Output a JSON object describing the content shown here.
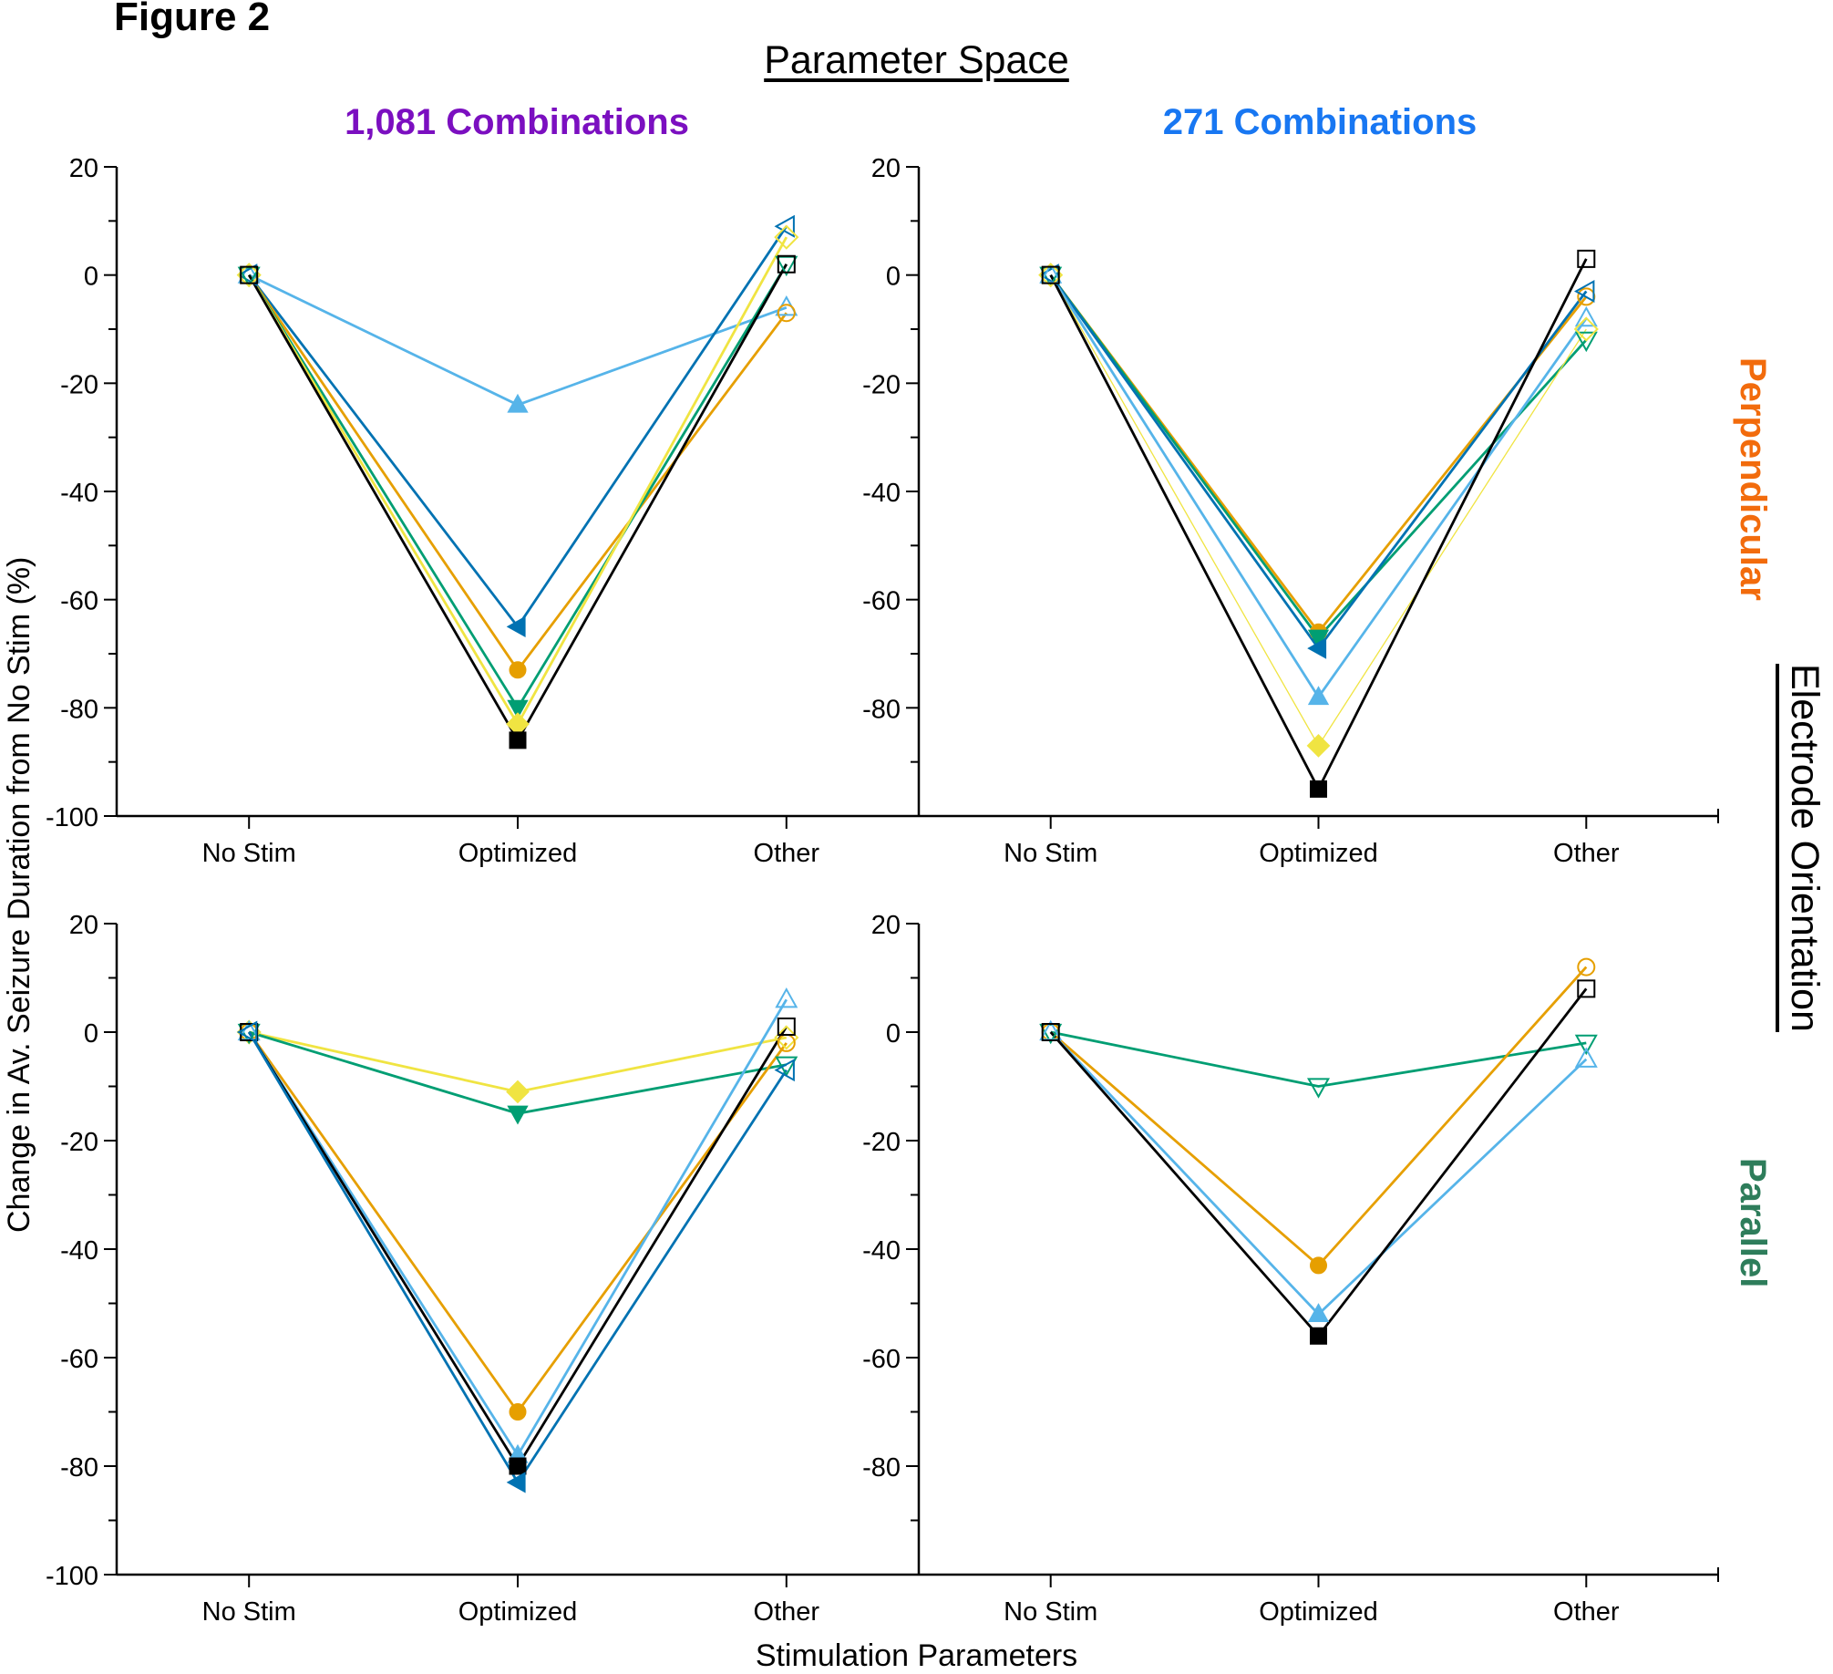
{
  "figure_label": "Figure 2",
  "top_title": "Parameter Space",
  "column_titles": [
    {
      "text": "1,081 Combinations",
      "color": "#7B0FC0"
    },
    {
      "text": "271 Combinations",
      "color": "#1877F2"
    }
  ],
  "row_titles": [
    {
      "text": "Perpendicular",
      "color": "#F26B0C"
    },
    {
      "text": "Parallel",
      "color": "#2E7D5B"
    }
  ],
  "right_title": "Electrode Orientation",
  "ylabel": "Change in Av. Seizure Duration from No Stim (%)",
  "xlabel": "Stimulation Parameters",
  "series_styles": {
    "black": {
      "color": "#000000",
      "marker": "square"
    },
    "orange": {
      "color": "#E69F00",
      "marker": "circle"
    },
    "lightblue": {
      "color": "#56B4E9",
      "marker": "triangle-up"
    },
    "green": {
      "color": "#009E73",
      "marker": "triangle-down"
    },
    "yellow": {
      "color": "#F0E442",
      "marker": "diamond"
    },
    "darkblue": {
      "color": "#0072B2",
      "marker": "triangle-left"
    }
  },
  "chart_data": [
    {
      "type": "line",
      "panel": "top-left",
      "title": "1,081 Combinations",
      "row": "Perpendicular",
      "categories": [
        "No Stim",
        "Optimized",
        "Other"
      ],
      "ylim": [
        -100,
        20
      ],
      "yticks": [
        20,
        0,
        -20,
        -40,
        -60,
        -80,
        -100
      ],
      "ytick_labels": [
        "20",
        "0",
        "-20",
        "-40",
        "-60",
        "-80",
        "-100"
      ],
      "grid": false,
      "series": [
        {
          "name": "lightblue",
          "values": [
            0,
            -24,
            -6
          ]
        },
        {
          "name": "darkblue",
          "values": [
            0,
            -65,
            9
          ]
        },
        {
          "name": "orange",
          "values": [
            0,
            -73,
            -7
          ]
        },
        {
          "name": "green",
          "values": [
            0,
            -80,
            2
          ]
        },
        {
          "name": "yellow",
          "values": [
            0,
            -83,
            7
          ]
        },
        {
          "name": "black",
          "values": [
            0,
            -86,
            2
          ]
        }
      ]
    },
    {
      "type": "line",
      "panel": "top-right",
      "title": "271 Combinations",
      "row": "Perpendicular",
      "categories": [
        "No Stim",
        "Optimized",
        "Other"
      ],
      "ylim": [
        -100,
        20
      ],
      "yticks": [
        20,
        0,
        -20,
        -40,
        -60,
        -80
      ],
      "ytick_labels": [
        "20",
        "0",
        "-20",
        "-40",
        "-60",
        "-80"
      ],
      "grid": false,
      "series": [
        {
          "name": "orange",
          "values": [
            0,
            -66,
            -4
          ]
        },
        {
          "name": "green",
          "values": [
            0,
            -67,
            -12
          ]
        },
        {
          "name": "darkblue",
          "values": [
            0,
            -69,
            -3
          ]
        },
        {
          "name": "lightblue",
          "values": [
            0,
            -78,
            -8
          ]
        },
        {
          "name": "yellow",
          "values": [
            0,
            -87,
            -10
          ]
        },
        {
          "name": "black",
          "values": [
            0,
            -95,
            3
          ]
        }
      ]
    },
    {
      "type": "line",
      "panel": "bottom-left",
      "title": "1,081 Combinations",
      "row": "Parallel",
      "categories": [
        "No Stim",
        "Optimized",
        "Other"
      ],
      "ylim": [
        -100,
        20
      ],
      "yticks": [
        20,
        0,
        -20,
        -40,
        -60,
        -80,
        -100
      ],
      "ytick_labels": [
        "20",
        "0",
        "-20",
        "-40",
        "-60",
        "-80",
        "-100"
      ],
      "grid": false,
      "series": [
        {
          "name": "yellow",
          "values": [
            0,
            -11,
            -1
          ]
        },
        {
          "name": "green",
          "values": [
            0,
            -15,
            -6
          ]
        },
        {
          "name": "orange",
          "values": [
            0,
            -70,
            -2
          ]
        },
        {
          "name": "lightblue",
          "values": [
            0,
            -78,
            6
          ]
        },
        {
          "name": "black",
          "values": [
            0,
            -80,
            1
          ]
        },
        {
          "name": "darkblue",
          "values": [
            0,
            -83,
            -7
          ]
        }
      ]
    },
    {
      "type": "line",
      "panel": "bottom-right",
      "title": "271 Combinations",
      "row": "Parallel",
      "categories": [
        "No Stim",
        "Optimized",
        "Other"
      ],
      "ylim": [
        -100,
        20
      ],
      "yticks": [
        20,
        0,
        -20,
        -40,
        -60,
        -80
      ],
      "ytick_labels": [
        "20",
        "0",
        "-20",
        "-40",
        "-60",
        "-80"
      ],
      "grid": false,
      "series": [
        {
          "name": "green",
          "values": [
            0,
            -10,
            -2
          ],
          "hollow_optimized": true
        },
        {
          "name": "orange",
          "values": [
            0,
            -43,
            12
          ]
        },
        {
          "name": "lightblue",
          "values": [
            0,
            -52,
            -5
          ]
        },
        {
          "name": "black",
          "values": [
            0,
            -56,
            8
          ]
        }
      ]
    }
  ]
}
